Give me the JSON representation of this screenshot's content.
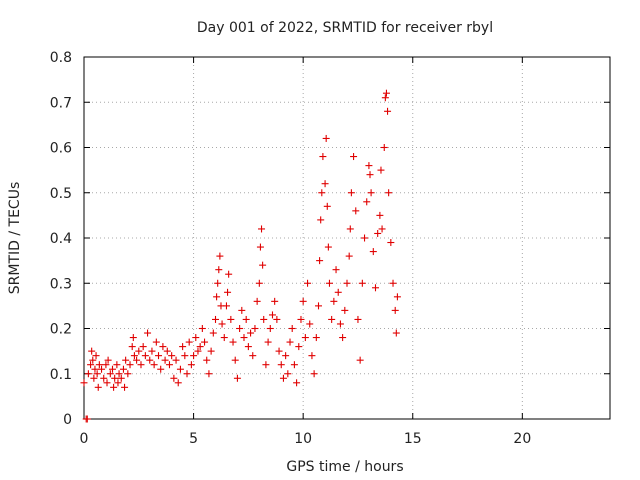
{
  "chart_data": {
    "type": "scatter",
    "title": "Day 001 of 2022, SRMTID for receiver rbyl",
    "xlabel": "GPS time / hours",
    "ylabel": "SRMTID / TECUs",
    "xlim": [
      0,
      24
    ],
    "ylim": [
      0,
      0.8
    ],
    "xticks": [
      0,
      5,
      10,
      15,
      20
    ],
    "xtick_labels": [
      "0",
      "5",
      "10",
      "15",
      "20"
    ],
    "yticks": [
      0,
      0.1,
      0.2,
      0.3,
      0.4,
      0.5,
      0.6,
      0.7,
      0.8
    ],
    "ytick_labels": [
      "0",
      "0.1",
      "0.2",
      "0.3",
      "0.4",
      "0.5",
      "0.6",
      "0.7",
      "0.8"
    ],
    "grid": true,
    "marker": "+",
    "color": "#e00000",
    "series": [
      {
        "name": "SRMTID",
        "points": [
          [
            0.0,
            0.08
          ],
          [
            0.1,
            0.0
          ],
          [
            0.15,
            0.0
          ],
          [
            0.2,
            0.1
          ],
          [
            0.3,
            0.12
          ],
          [
            0.35,
            0.15
          ],
          [
            0.4,
            0.13
          ],
          [
            0.45,
            0.09
          ],
          [
            0.5,
            0.11
          ],
          [
            0.55,
            0.14
          ],
          [
            0.6,
            0.1
          ],
          [
            0.65,
            0.07
          ],
          [
            0.7,
            0.12
          ],
          [
            0.8,
            0.11
          ],
          [
            0.9,
            0.09
          ],
          [
            1.0,
            0.12
          ],
          [
            1.05,
            0.08
          ],
          [
            1.1,
            0.13
          ],
          [
            1.2,
            0.1
          ],
          [
            1.3,
            0.11
          ],
          [
            1.35,
            0.07
          ],
          [
            1.4,
            0.09
          ],
          [
            1.5,
            0.12
          ],
          [
            1.55,
            0.08
          ],
          [
            1.6,
            0.1
          ],
          [
            1.7,
            0.09
          ],
          [
            1.8,
            0.11
          ],
          [
            1.85,
            0.07
          ],
          [
            1.9,
            0.13
          ],
          [
            2.0,
            0.1
          ],
          [
            2.1,
            0.12
          ],
          [
            2.2,
            0.16
          ],
          [
            2.25,
            0.18
          ],
          [
            2.3,
            0.14
          ],
          [
            2.4,
            0.13
          ],
          [
            2.5,
            0.15
          ],
          [
            2.6,
            0.12
          ],
          [
            2.7,
            0.16
          ],
          [
            2.8,
            0.14
          ],
          [
            2.9,
            0.19
          ],
          [
            3.0,
            0.13
          ],
          [
            3.1,
            0.15
          ],
          [
            3.2,
            0.12
          ],
          [
            3.3,
            0.17
          ],
          [
            3.4,
            0.14
          ],
          [
            3.5,
            0.11
          ],
          [
            3.6,
            0.16
          ],
          [
            3.7,
            0.13
          ],
          [
            3.8,
            0.15
          ],
          [
            3.9,
            0.12
          ],
          [
            4.0,
            0.14
          ],
          [
            4.1,
            0.09
          ],
          [
            4.2,
            0.13
          ],
          [
            4.3,
            0.08
          ],
          [
            4.4,
            0.11
          ],
          [
            4.5,
            0.16
          ],
          [
            4.6,
            0.14
          ],
          [
            4.7,
            0.1
          ],
          [
            4.8,
            0.17
          ],
          [
            4.9,
            0.12
          ],
          [
            5.0,
            0.14
          ],
          [
            5.1,
            0.18
          ],
          [
            5.2,
            0.15
          ],
          [
            5.3,
            0.16
          ],
          [
            5.4,
            0.2
          ],
          [
            5.5,
            0.17
          ],
          [
            5.6,
            0.13
          ],
          [
            5.7,
            0.1
          ],
          [
            5.8,
            0.15
          ],
          [
            5.9,
            0.19
          ],
          [
            6.0,
            0.22
          ],
          [
            6.05,
            0.27
          ],
          [
            6.1,
            0.3
          ],
          [
            6.15,
            0.33
          ],
          [
            6.2,
            0.36
          ],
          [
            6.25,
            0.25
          ],
          [
            6.3,
            0.21
          ],
          [
            6.4,
            0.18
          ],
          [
            6.5,
            0.25
          ],
          [
            6.55,
            0.28
          ],
          [
            6.6,
            0.32
          ],
          [
            6.7,
            0.22
          ],
          [
            6.8,
            0.17
          ],
          [
            6.9,
            0.13
          ],
          [
            7.0,
            0.09
          ],
          [
            7.1,
            0.2
          ],
          [
            7.2,
            0.24
          ],
          [
            7.3,
            0.18
          ],
          [
            7.4,
            0.22
          ],
          [
            7.5,
            0.16
          ],
          [
            7.6,
            0.19
          ],
          [
            7.7,
            0.14
          ],
          [
            7.8,
            0.2
          ],
          [
            7.9,
            0.26
          ],
          [
            8.0,
            0.3
          ],
          [
            8.05,
            0.38
          ],
          [
            8.1,
            0.42
          ],
          [
            8.15,
            0.34
          ],
          [
            8.2,
            0.22
          ],
          [
            8.3,
            0.12
          ],
          [
            8.4,
            0.17
          ],
          [
            8.5,
            0.2
          ],
          [
            8.6,
            0.23
          ],
          [
            8.7,
            0.26
          ],
          [
            8.8,
            0.22
          ],
          [
            8.9,
            0.15
          ],
          [
            9.0,
            0.12
          ],
          [
            9.1,
            0.09
          ],
          [
            9.2,
            0.14
          ],
          [
            9.3,
            0.1
          ],
          [
            9.4,
            0.17
          ],
          [
            9.5,
            0.2
          ],
          [
            9.6,
            0.12
          ],
          [
            9.7,
            0.08
          ],
          [
            9.8,
            0.16
          ],
          [
            9.9,
            0.22
          ],
          [
            10.0,
            0.26
          ],
          [
            10.1,
            0.18
          ],
          [
            10.2,
            0.3
          ],
          [
            10.3,
            0.21
          ],
          [
            10.4,
            0.14
          ],
          [
            10.5,
            0.1
          ],
          [
            10.6,
            0.18
          ],
          [
            10.7,
            0.25
          ],
          [
            10.75,
            0.35
          ],
          [
            10.8,
            0.44
          ],
          [
            10.85,
            0.5
          ],
          [
            10.9,
            0.58
          ],
          [
            11.0,
            0.52
          ],
          [
            11.05,
            0.62
          ],
          [
            11.1,
            0.47
          ],
          [
            11.15,
            0.38
          ],
          [
            11.2,
            0.3
          ],
          [
            11.3,
            0.22
          ],
          [
            11.4,
            0.26
          ],
          [
            11.5,
            0.33
          ],
          [
            11.6,
            0.28
          ],
          [
            11.7,
            0.21
          ],
          [
            11.8,
            0.18
          ],
          [
            11.9,
            0.24
          ],
          [
            12.0,
            0.3
          ],
          [
            12.1,
            0.36
          ],
          [
            12.15,
            0.42
          ],
          [
            12.2,
            0.5
          ],
          [
            12.3,
            0.58
          ],
          [
            12.4,
            0.46
          ],
          [
            12.5,
            0.22
          ],
          [
            12.6,
            0.13
          ],
          [
            12.7,
            0.3
          ],
          [
            12.8,
            0.4
          ],
          [
            12.9,
            0.48
          ],
          [
            13.0,
            0.56
          ],
          [
            13.05,
            0.54
          ],
          [
            13.1,
            0.5
          ],
          [
            13.2,
            0.37
          ],
          [
            13.3,
            0.29
          ],
          [
            13.4,
            0.41
          ],
          [
            13.5,
            0.45
          ],
          [
            13.55,
            0.55
          ],
          [
            13.6,
            0.42
          ],
          [
            13.7,
            0.6
          ],
          [
            13.75,
            0.71
          ],
          [
            13.8,
            0.72
          ],
          [
            13.85,
            0.68
          ],
          [
            13.9,
            0.5
          ],
          [
            14.0,
            0.39
          ],
          [
            14.1,
            0.3
          ],
          [
            14.2,
            0.24
          ],
          [
            14.25,
            0.19
          ],
          [
            14.3,
            0.27
          ]
        ]
      }
    ]
  }
}
